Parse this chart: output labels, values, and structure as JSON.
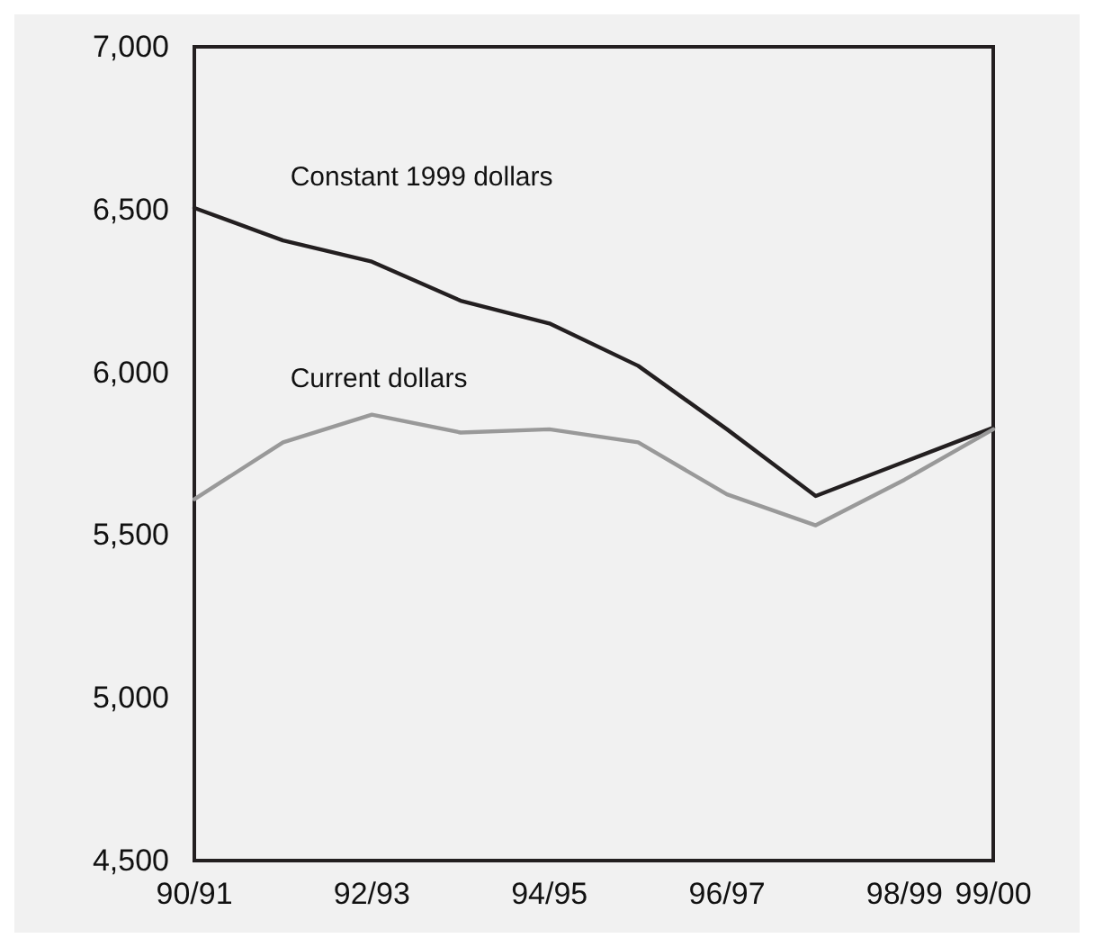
{
  "chart_data": {
    "type": "line",
    "categories": [
      "90/91",
      null,
      "92/93",
      null,
      "94/95",
      null,
      "96/97",
      null,
      "98/99",
      "99/00"
    ],
    "series": [
      {
        "name": "Constant 1999 dollars",
        "color": "#231f20",
        "values": [
          6505,
          6405,
          6340,
          6220,
          6150,
          6020,
          5825,
          5620,
          5725,
          5830
        ]
      },
      {
        "name": "Current dollars",
        "color": "#999999",
        "values": [
          5610,
          5785,
          5870,
          5815,
          5825,
          5785,
          5625,
          5530,
          5670,
          5825
        ]
      }
    ],
    "ylim": [
      4500,
      7000
    ],
    "yticks": [
      {
        "value": 4500,
        "label": "4,500"
      },
      {
        "value": 5000,
        "label": "5,000"
      },
      {
        "value": 5500,
        "label": "5,500"
      },
      {
        "value": 6000,
        "label": "6,000"
      },
      {
        "value": 6500,
        "label": "6,500"
      },
      {
        "value": 7000,
        "label": "7,000"
      }
    ],
    "grid": false,
    "legend": false,
    "marker": "none",
    "line_style": "solid"
  }
}
